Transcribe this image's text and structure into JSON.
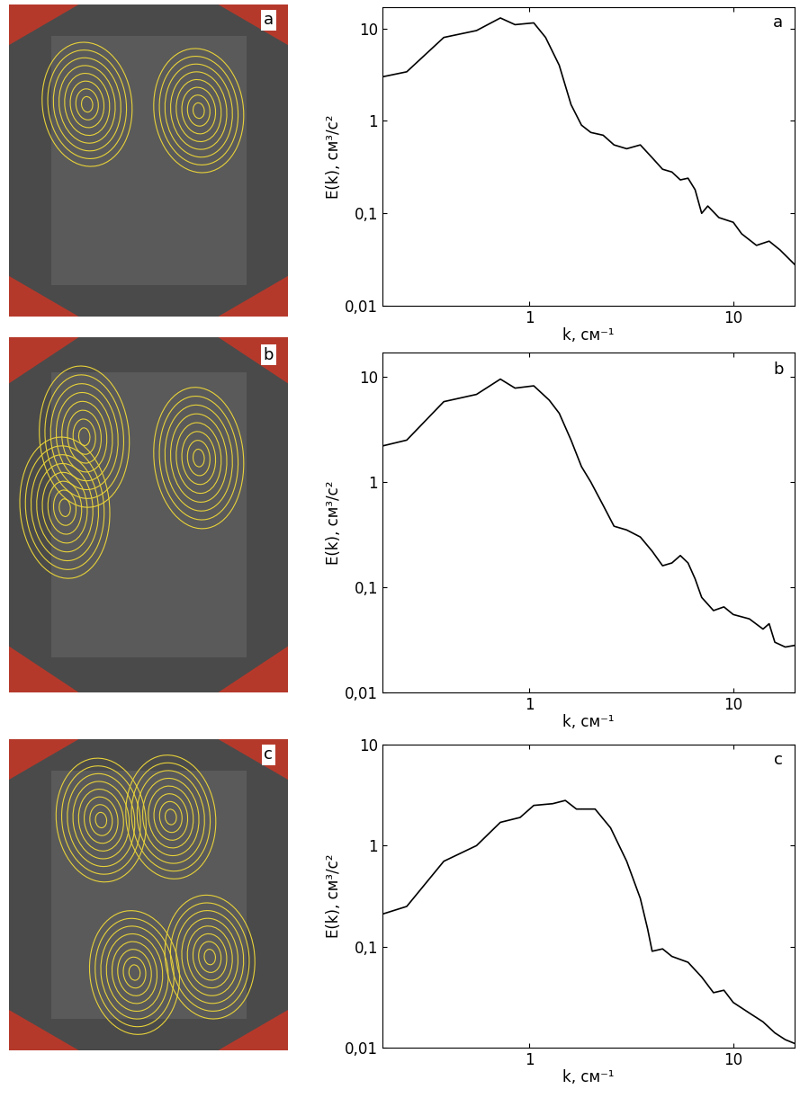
{
  "chart_data": [
    {
      "type": "line",
      "panel_label": "a",
      "log": true,
      "color": "#000000",
      "x_label": "k, см⁻¹",
      "y_label": "E(k), см³/с²",
      "x": [
        0.19,
        0.25,
        0.38,
        0.55,
        0.72,
        0.85,
        1.05,
        1.2,
        1.4,
        1.6,
        1.8,
        2.0,
        2.3,
        2.6,
        3.0,
        3.5,
        4.0,
        4.5,
        5.0,
        5.5,
        6.0,
        6.5,
        7.0,
        7.5,
        8.5,
        10,
        11,
        13,
        15,
        17,
        20
      ],
      "values": [
        3,
        3.4,
        8,
        9.5,
        13,
        11,
        11.5,
        8,
        4,
        1.5,
        0.9,
        0.75,
        0.7,
        0.55,
        0.5,
        0.55,
        0.4,
        0.3,
        0.28,
        0.23,
        0.24,
        0.18,
        0.1,
        0.12,
        0.09,
        0.08,
        0.06,
        0.045,
        0.05,
        0.04,
        0.028
      ],
      "xlim": [
        0.19,
        20
      ],
      "ylim": [
        0.01,
        17
      ],
      "xticks": [
        1,
        10
      ],
      "yticks": [
        {
          "value": 0.01,
          "label": "0,01"
        },
        {
          "value": 0.1,
          "label": "0,1"
        },
        1,
        10
      ]
    },
    {
      "type": "line",
      "panel_label": "b",
      "log": true,
      "color": "#000000",
      "x_label": "k, см⁻¹",
      "y_label": "E(k), см³/с²",
      "x": [
        0.19,
        0.25,
        0.38,
        0.55,
        0.72,
        0.85,
        1.05,
        1.25,
        1.4,
        1.6,
        1.8,
        2.0,
        2.3,
        2.6,
        3.0,
        3.5,
        4.0,
        4.5,
        5.0,
        5.5,
        6.0,
        6.5,
        7.0,
        8,
        9,
        10,
        12,
        14,
        15,
        16,
        18,
        20
      ],
      "values": [
        2.2,
        2.5,
        5.8,
        6.8,
        9.5,
        7.8,
        8.2,
        6,
        4.5,
        2.5,
        1.4,
        1.0,
        0.6,
        0.38,
        0.35,
        0.3,
        0.22,
        0.16,
        0.17,
        0.2,
        0.17,
        0.12,
        0.08,
        0.06,
        0.065,
        0.055,
        0.05,
        0.04,
        0.045,
        0.03,
        0.027,
        0.028
      ],
      "xlim": [
        0.19,
        20
      ],
      "ylim": [
        0.01,
        17
      ],
      "xticks": [
        1,
        10
      ],
      "yticks": [
        {
          "value": 0.01,
          "label": "0,01"
        },
        {
          "value": 0.1,
          "label": "0,1"
        },
        1,
        10
      ]
    },
    {
      "type": "line",
      "panel_label": "c",
      "log": true,
      "color": "#000000",
      "x_label": "k, см⁻¹",
      "y_label": "E(k), см³/с²",
      "x": [
        0.19,
        0.25,
        0.38,
        0.55,
        0.72,
        0.9,
        1.05,
        1.3,
        1.5,
        1.7,
        2.1,
        2.5,
        3.0,
        3.5,
        3.8,
        4.0,
        4.5,
        5.0,
        6.0,
        7,
        8,
        9,
        10,
        12,
        14,
        16,
        18,
        20
      ],
      "values": [
        0.21,
        0.25,
        0.7,
        1.0,
        1.7,
        1.9,
        2.5,
        2.6,
        2.8,
        2.3,
        2.3,
        1.5,
        0.7,
        0.3,
        0.15,
        0.09,
        0.095,
        0.08,
        0.07,
        0.05,
        0.035,
        0.037,
        0.028,
        0.022,
        0.018,
        0.014,
        0.012,
        0.011
      ],
      "xlim": [
        0.19,
        20
      ],
      "ylim": [
        0.01,
        10
      ],
      "xticks": [
        1,
        10
      ],
      "yticks": [
        {
          "value": 0.01,
          "label": "0,01"
        },
        {
          "value": 0.1,
          "label": "0,1"
        },
        1,
        10
      ]
    }
  ]
}
